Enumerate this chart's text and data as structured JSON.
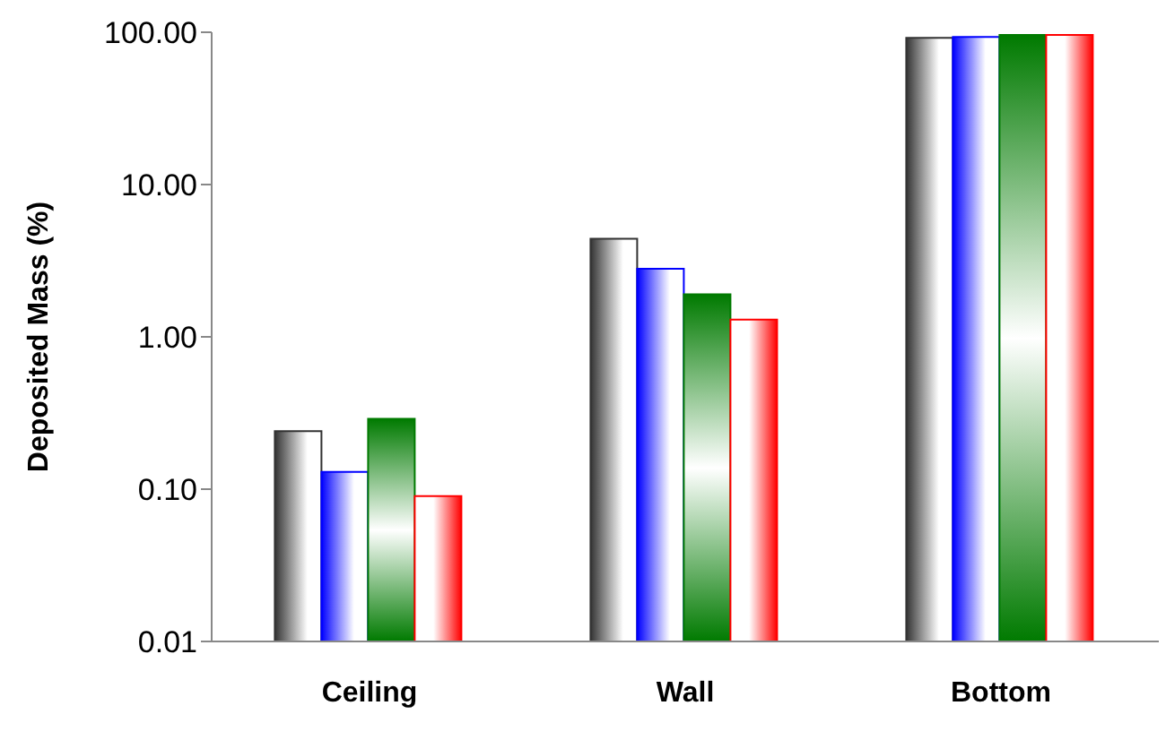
{
  "chart_data": {
    "type": "bar",
    "ylabel": "Deposited Mass (%)",
    "categories": [
      "Ceiling",
      "Wall",
      "Bottom"
    ],
    "series": [
      {
        "color": "#333333",
        "values": [
          0.24,
          4.4,
          92
        ]
      },
      {
        "color": "#0000ff",
        "values": [
          0.13,
          2.8,
          93
        ]
      },
      {
        "color": "#007a00",
        "values": [
          0.29,
          1.9,
          96
        ]
      },
      {
        "color": "#ff0000",
        "values": [
          0.09,
          1.3,
          96
        ]
      }
    ],
    "log": true,
    "ylim": [
      0.01,
      100
    ],
    "yticks": [
      {
        "value": 0.01,
        "label": "0.01"
      },
      {
        "value": 0.1,
        "label": "0.10"
      },
      {
        "value": 1,
        "label": "1.00"
      },
      {
        "value": 10,
        "label": "10.00"
      },
      {
        "value": 100,
        "label": "100.00"
      }
    ],
    "grid": false
  }
}
